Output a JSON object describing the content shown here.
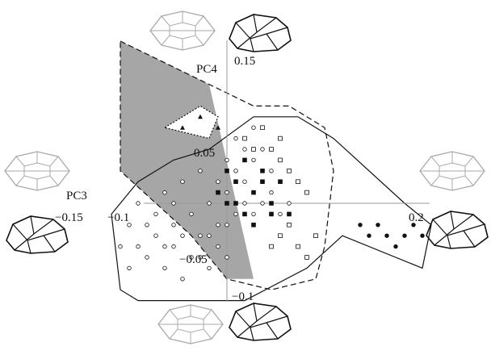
{
  "chart_data": {
    "type": "scatter",
    "axes": {
      "x": {
        "label": "PC3",
        "ticks": [
          "−0.15",
          "−0.1",
          "0.2"
        ],
        "tick_values": [
          -0.15,
          -0.1,
          0.2
        ]
      },
      "y": {
        "label": "PC4",
        "ticks": [
          "0.15",
          "0.05",
          "−0.05",
          "−0.1"
        ],
        "tick_values": [
          0.15,
          0.05,
          -0.05,
          -0.1
        ]
      }
    },
    "xlim": [
      -0.28,
      0.24
    ],
    "ylim": [
      -0.16,
      0.18
    ],
    "grid": false,
    "series": [
      {
        "marker": "open-circle",
        "points": [
          [
            -0.12,
            -0.04
          ],
          [
            -0.11,
            -0.02
          ],
          [
            -0.1,
            0.0
          ],
          [
            -0.09,
            -0.05
          ],
          [
            -0.08,
            -0.03
          ],
          [
            -0.07,
            -0.06
          ],
          [
            -0.07,
            0.01
          ],
          [
            -0.06,
            -0.02
          ],
          [
            -0.06,
            -0.04
          ],
          [
            -0.05,
            0.02
          ],
          [
            -0.05,
            -0.07
          ],
          [
            -0.04,
            -0.01
          ],
          [
            -0.04,
            -0.05
          ],
          [
            -0.03,
            0.03
          ],
          [
            -0.03,
            -0.03
          ],
          [
            -0.02,
            0.0
          ],
          [
            -0.02,
            -0.06
          ],
          [
            -0.01,
            0.02
          ],
          [
            -0.01,
            -0.04
          ],
          [
            0.0,
            0.01
          ],
          [
            0.0,
            -0.02
          ],
          [
            0.01,
            0.03
          ],
          [
            0.01,
            -0.01
          ],
          [
            0.02,
            0.05
          ],
          [
            0.02,
            0.0
          ],
          [
            0.03,
            0.04
          ],
          [
            0.03,
            -0.01
          ],
          [
            0.04,
            0.02
          ],
          [
            0.04,
            0.0
          ],
          [
            0.05,
            0.03
          ],
          [
            0.05,
            0.01
          ],
          [
            0.06,
            0.02
          ],
          [
            0.06,
            -0.01
          ],
          [
            0.07,
            0.0
          ],
          [
            -0.1,
            -0.04
          ],
          [
            -0.08,
            -0.01
          ],
          [
            -0.06,
            0.0
          ],
          [
            -0.05,
            -0.03
          ],
          [
            -0.03,
            -0.05
          ],
          [
            -0.01,
            -0.02
          ],
          [
            0.0,
            0.04
          ],
          [
            0.01,
            0.06
          ],
          [
            0.02,
            0.02
          ],
          [
            0.03,
            0.07
          ],
          [
            0.04,
            0.05
          ],
          [
            -0.11,
            -0.06
          ],
          [
            -0.09,
            -0.02
          ],
          [
            -0.07,
            -0.04
          ],
          [
            -0.02,
            -0.03
          ],
          [
            0.0,
            -0.05
          ]
        ]
      },
      {
        "marker": "filled-square",
        "points": [
          [
            0.0,
            0.03
          ],
          [
            0.01,
            0.02
          ],
          [
            0.02,
            0.04
          ],
          [
            0.02,
            -0.01
          ],
          [
            0.03,
            0.01
          ],
          [
            0.04,
            0.03
          ],
          [
            0.05,
            0.0
          ],
          [
            0.06,
            0.02
          ],
          [
            -0.01,
            0.01
          ],
          [
            0.01,
            0.0
          ],
          [
            0.03,
            -0.02
          ],
          [
            0.05,
            -0.01
          ],
          [
            0.07,
            -0.01
          ],
          [
            0.0,
            0.0
          ],
          [
            0.04,
            0.02
          ]
        ]
      },
      {
        "marker": "open-square",
        "points": [
          [
            0.02,
            0.06
          ],
          [
            0.04,
            0.07
          ],
          [
            0.05,
            0.05
          ],
          [
            0.06,
            0.04
          ],
          [
            0.07,
            0.03
          ],
          [
            0.08,
            0.02
          ],
          [
            0.09,
            0.01
          ],
          [
            0.07,
            -0.02
          ],
          [
            0.06,
            -0.03
          ],
          [
            0.05,
            -0.04
          ],
          [
            0.08,
            -0.04
          ],
          [
            0.09,
            -0.05
          ],
          [
            0.1,
            -0.03
          ],
          [
            0.03,
            0.05
          ],
          [
            0.06,
            0.06
          ]
        ]
      },
      {
        "marker": "filled-circle",
        "points": [
          [
            0.15,
            -0.02
          ],
          [
            0.16,
            -0.03
          ],
          [
            0.17,
            -0.02
          ],
          [
            0.18,
            -0.03
          ],
          [
            0.19,
            -0.04
          ],
          [
            0.2,
            -0.03
          ],
          [
            0.21,
            -0.02
          ],
          [
            0.22,
            -0.03
          ]
        ]
      },
      {
        "marker": "filled-triangle",
        "points": [
          [
            -0.05,
            0.07
          ],
          [
            -0.03,
            0.08
          ],
          [
            -0.01,
            0.07
          ]
        ]
      }
    ],
    "hulls": [
      {
        "style": "solid",
        "points": [
          [
            -0.13,
            -0.01
          ],
          [
            -0.12,
            -0.08
          ],
          [
            -0.1,
            -0.09
          ],
          [
            0.02,
            -0.09
          ],
          [
            0.09,
            -0.06
          ],
          [
            0.13,
            -0.03
          ],
          [
            0.22,
            -0.06
          ],
          [
            0.23,
            -0.02
          ],
          [
            0.2,
            0.0
          ],
          [
            0.12,
            0.06
          ],
          [
            0.08,
            0.08
          ],
          [
            0.03,
            0.08
          ],
          [
            -0.02,
            0.05
          ],
          [
            -0.06,
            0.04
          ],
          [
            -0.1,
            0.02
          ]
        ]
      },
      {
        "style": "dashed",
        "points": [
          [
            -0.12,
            0.15
          ],
          [
            0.03,
            0.09
          ],
          [
            0.07,
            0.09
          ],
          [
            0.11,
            0.07
          ],
          [
            0.12,
            0.03
          ],
          [
            0.11,
            -0.04
          ],
          [
            0.1,
            -0.07
          ],
          [
            0.05,
            -0.08
          ],
          [
            0.0,
            -0.07
          ],
          [
            -0.04,
            -0.03
          ],
          [
            -0.08,
            0.0
          ],
          [
            -0.12,
            0.03
          ]
        ]
      },
      {
        "style": "dotted-filled",
        "points": [
          [
            -0.07,
            0.07
          ],
          [
            -0.03,
            0.09
          ],
          [
            -0.01,
            0.08
          ],
          [
            -0.02,
            0.06
          ]
        ]
      }
    ]
  },
  "icons": {
    "shape_icons": [
      {
        "name": "top-skull-dorsal-icon",
        "color": "#a9a9a9"
      },
      {
        "name": "top-skull-lateral-icon",
        "color": "#111111"
      },
      {
        "name": "left-skull-dorsal-icon",
        "color": "#a9a9a9"
      },
      {
        "name": "left-skull-lateral-icon",
        "color": "#111111"
      },
      {
        "name": "right-skull-dorsal-icon",
        "color": "#a9a9a9"
      },
      {
        "name": "right-skull-lateral-icon",
        "color": "#111111"
      },
      {
        "name": "bottom-skull-dorsal-icon",
        "color": "#a9a9a9"
      },
      {
        "name": "bottom-skull-lateral-icon",
        "color": "#111111"
      }
    ]
  },
  "colors": {
    "axis": "#999999",
    "hull_fill": "#a6a6a6",
    "marker": "#111111"
  }
}
